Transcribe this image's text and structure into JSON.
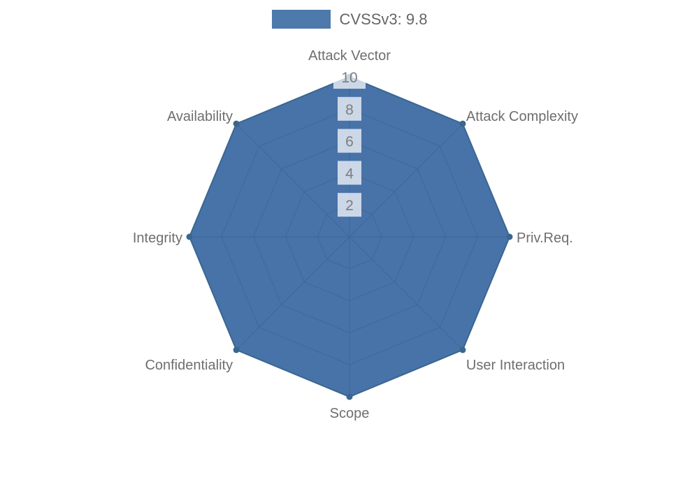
{
  "legend": {
    "label": "CVSSv3: 9.8"
  },
  "chart_data": {
    "type": "radar",
    "title": "CVSSv3: 9.8",
    "categories": [
      "Attack Vector",
      "Attack Complexity",
      "Priv.Req.",
      "User Interaction",
      "Scope",
      "Confidentiality",
      "Integrity",
      "Availability"
    ],
    "series": [
      {
        "name": "CVSSv3: 9.8",
        "values": [
          10,
          10,
          10,
          10,
          10,
          10,
          10,
          10
        ]
      }
    ],
    "ticks": [
      2,
      4,
      6,
      8,
      10
    ],
    "rmax": 10,
    "grid": true,
    "legend_position": "top",
    "colors": {
      "fill": "rgba(52,100,160,0.9)",
      "fill_solid": "#4D79AB",
      "border": "#3A668F",
      "grid": "#888888",
      "axis_label": "#6E6E6E",
      "tick_label": "#7D7D7D",
      "tick_backdrop": "rgba(255,255,255,0.72)"
    }
  }
}
